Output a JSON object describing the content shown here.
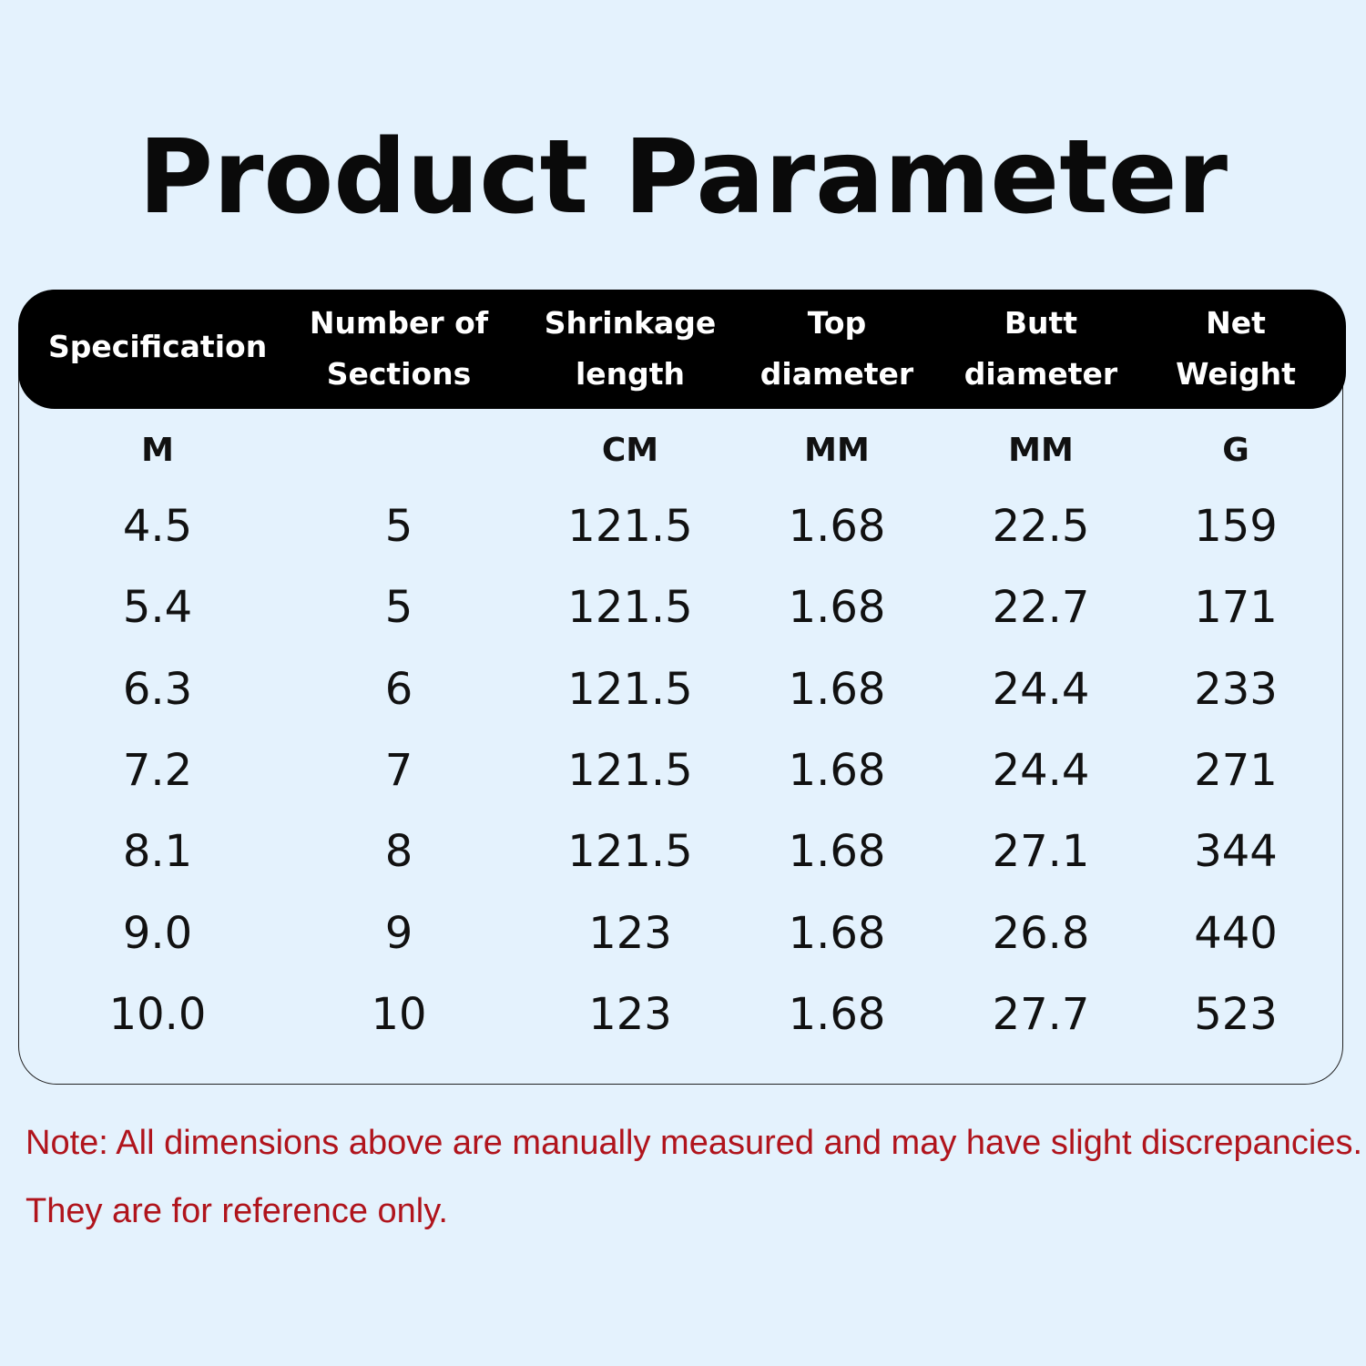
{
  "header": {
    "title": "Product Parameter"
  },
  "table": {
    "columns": [
      [
        "Specification"
      ],
      [
        "Number of",
        "Sections"
      ],
      [
        "Shrinkage",
        "length"
      ],
      [
        "Top",
        "diameter"
      ],
      [
        "Butt",
        "diameter"
      ],
      [
        "Net",
        "Weight"
      ]
    ],
    "units": [
      "M",
      null,
      "CM",
      "MM",
      "MM",
      "G"
    ],
    "rows": [
      [
        "4.5",
        "5",
        "121.5",
        "1.68",
        "22.5",
        "159"
      ],
      [
        "5.4",
        "5",
        "121.5",
        "1.68",
        "22.7",
        "171"
      ],
      [
        "6.3",
        "6",
        "121.5",
        "1.68",
        "24.4",
        "233"
      ],
      [
        "7.2",
        "7",
        "121.5",
        "1.68",
        "24.4",
        "271"
      ],
      [
        "8.1",
        "8",
        "121.5",
        "1.68",
        "27.1",
        "344"
      ],
      [
        "9.0",
        "9",
        "123",
        "1.68",
        "26.8",
        "440"
      ],
      [
        "10.0",
        "10",
        "123",
        "1.68",
        "27.7",
        "523"
      ]
    ]
  },
  "note": "Note: All dimensions above are manually measured and may have slight discrepancies. They are for reference only."
}
